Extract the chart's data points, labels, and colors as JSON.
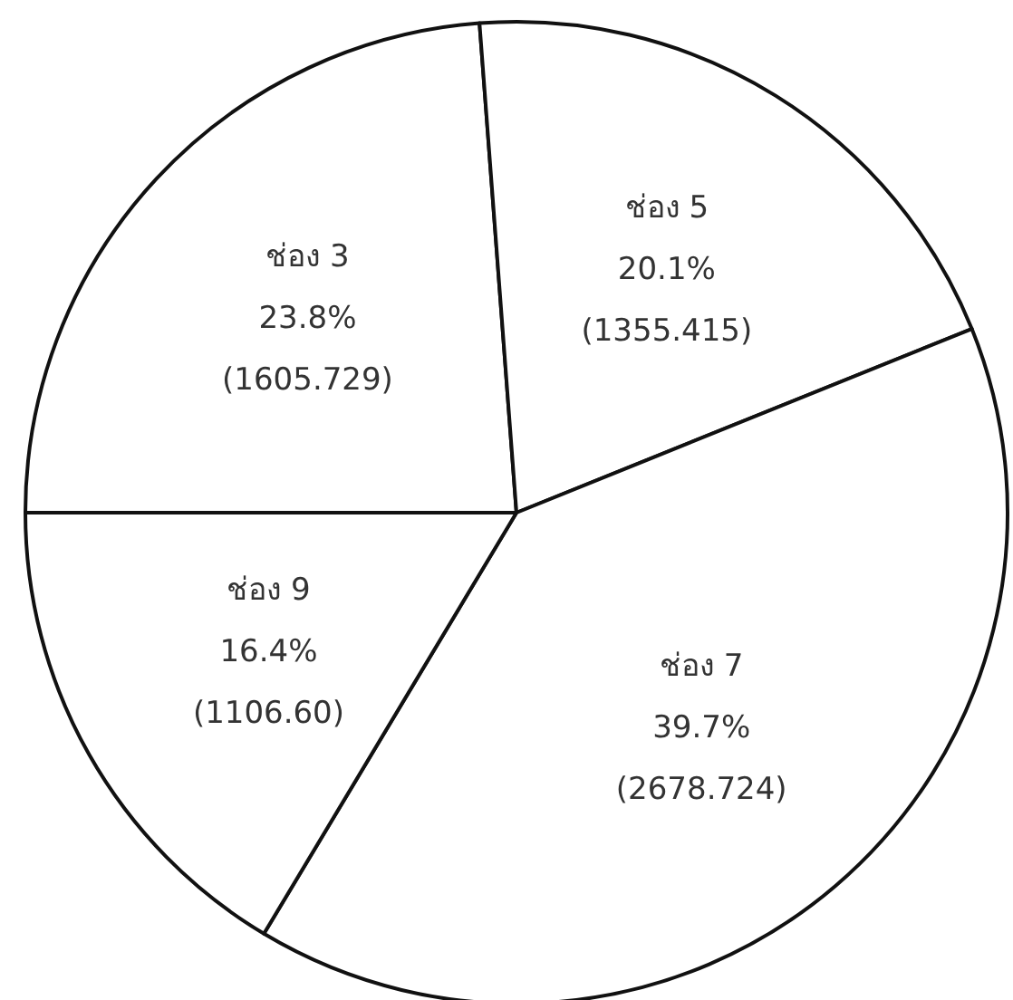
{
  "chart_data": {
    "type": "pie",
    "categories": [
      "ช่อง 3",
      "ช่อง 5",
      "ช่อง 7",
      "ช่อง 9"
    ],
    "values": [
      1605.729,
      1355.415,
      2678.724,
      1106.6
    ],
    "value_labels": [
      "23.8%\n(1605.729)",
      "20.1%\n(1355.415)",
      "39.7%\n(2678.724)",
      "16.4%\n(1106.60)"
    ],
    "colors": [
      "#ffffff",
      "#ffffff",
      "#ffffff",
      "#ffffff"
    ]
  }
}
